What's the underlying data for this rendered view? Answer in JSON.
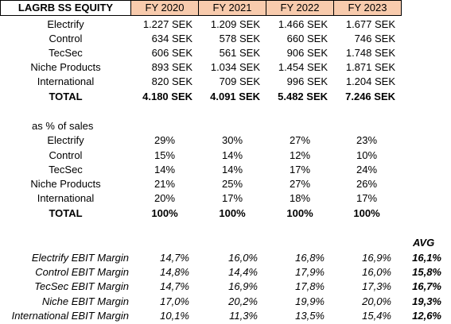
{
  "header": {
    "ticker": "LAGRB SS EQUITY",
    "years": [
      "FY 2020",
      "FY 2021",
      "FY 2022",
      "FY 2023"
    ]
  },
  "sales": {
    "rows": [
      {
        "label": "Electrify",
        "values": [
          "1.227 SEK",
          "1.209 SEK",
          "1.466 SEK",
          "1.677 SEK"
        ]
      },
      {
        "label": "Control",
        "values": [
          "634 SEK",
          "578 SEK",
          "660 SEK",
          "746 SEK"
        ]
      },
      {
        "label": "TecSec",
        "values": [
          "606 SEK",
          "561 SEK",
          "906 SEK",
          "1.748 SEK"
        ]
      },
      {
        "label": "Niche Products",
        "values": [
          "893 SEK",
          "1.034 SEK",
          "1.454 SEK",
          "1.871 SEK"
        ]
      },
      {
        "label": "International",
        "values": [
          "820 SEK",
          "709 SEK",
          "996 SEK",
          "1.204 SEK"
        ]
      }
    ],
    "total": {
      "label": "TOTAL",
      "values": [
        "4.180 SEK",
        "4.091 SEK",
        "5.482 SEK",
        "7.246 SEK"
      ]
    }
  },
  "share": {
    "title": "as % of sales",
    "rows": [
      {
        "label": "Electrify",
        "values": [
          "29%",
          "30%",
          "27%",
          "23%"
        ]
      },
      {
        "label": "Control",
        "values": [
          "15%",
          "14%",
          "12%",
          "10%"
        ]
      },
      {
        "label": "TecSec",
        "values": [
          "14%",
          "14%",
          "17%",
          "24%"
        ]
      },
      {
        "label": "Niche Products",
        "values": [
          "21%",
          "25%",
          "27%",
          "26%"
        ]
      },
      {
        "label": "International",
        "values": [
          "20%",
          "17%",
          "18%",
          "17%"
        ]
      }
    ],
    "total": {
      "label": "TOTAL",
      "values": [
        "100%",
        "100%",
        "100%",
        "100%"
      ]
    }
  },
  "ebit": {
    "avg_label": "AVG",
    "rows": [
      {
        "label": "Electrify EBIT Margin",
        "values": [
          "14,7%",
          "16,0%",
          "16,8%",
          "16,9%"
        ],
        "avg": "16,1%"
      },
      {
        "label": "Control EBIT Margin",
        "values": [
          "14,8%",
          "14,4%",
          "17,9%",
          "16,0%"
        ],
        "avg": "15,8%"
      },
      {
        "label": "TecSec EBIT Margin",
        "values": [
          "14,7%",
          "16,9%",
          "17,8%",
          "17,3%"
        ],
        "avg": "16,7%"
      },
      {
        "label": "Niche EBIT Margin",
        "values": [
          "17,0%",
          "20,2%",
          "19,9%",
          "20,0%"
        ],
        "avg": "19,3%"
      },
      {
        "label": "International EBIT Margin",
        "values": [
          "10,1%",
          "11,3%",
          "13,5%",
          "15,4%"
        ],
        "avg": "12,6%"
      }
    ]
  }
}
